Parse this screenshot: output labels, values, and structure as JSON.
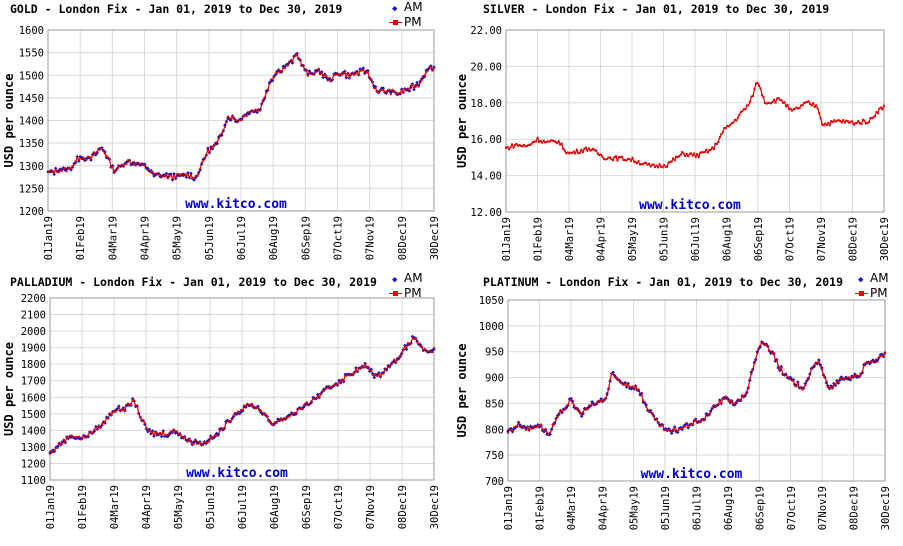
{
  "colors": {
    "am": "#1010c0",
    "pm": "#e00000",
    "grid": "#d8d8d8",
    "watermark": "#0000cc"
  },
  "legend": {
    "am": "AM",
    "pm": "PM"
  },
  "ylabel": "USD per ounce",
  "watermark": "www.kitco.com",
  "x_ticks": [
    "01Jan19",
    "01Feb19",
    "04Mar19",
    "04Apr19",
    "05May19",
    "05Jun19",
    "06Jul19",
    "06Aug19",
    "06Sep19",
    "07Oct19",
    "07Nov19",
    "08Dec19",
    "30Dec19"
  ],
  "chart_data": [
    {
      "type": "line",
      "title": "GOLD - London Fix - Jan 01, 2019 to Dec 30, 2019",
      "ylabel": "USD per ounce",
      "ylim": [
        1200,
        1600
      ],
      "yticks": [
        "1200",
        "1250",
        "1300",
        "1350",
        "1400",
        "1450",
        "1500",
        "1550",
        "1600"
      ],
      "legend": [
        "AM",
        "PM"
      ],
      "watermark": "www.kitco.com",
      "series_keypoints": [
        [
          0,
          1285
        ],
        [
          10,
          1290
        ],
        [
          20,
          1292
        ],
        [
          30,
          1320
        ],
        [
          40,
          1315
        ],
        [
          50,
          1340
        ],
        [
          55,
          1325
        ],
        [
          62,
          1288
        ],
        [
          75,
          1310
        ],
        [
          90,
          1300
        ],
        [
          100,
          1280
        ],
        [
          115,
          1275
        ],
        [
          130,
          1280
        ],
        [
          140,
          1275
        ],
        [
          150,
          1330
        ],
        [
          160,
          1350
        ],
        [
          170,
          1410
        ],
        [
          180,
          1400
        ],
        [
          190,
          1420
        ],
        [
          200,
          1425
        ],
        [
          210,
          1490
        ],
        [
          215,
          1505
        ],
        [
          225,
          1520
        ],
        [
          235,
          1545
        ],
        [
          245,
          1500
        ],
        [
          255,
          1510
        ],
        [
          265,
          1490
        ],
        [
          275,
          1505
        ],
        [
          285,
          1500
        ],
        [
          300,
          1510
        ],
        [
          310,
          1465
        ],
        [
          320,
          1465
        ],
        [
          330,
          1460
        ],
        [
          340,
          1470
        ],
        [
          350,
          1480
        ],
        [
          358,
          1515
        ],
        [
          364,
          1515
        ]
      ]
    },
    {
      "type": "line",
      "title": "SILVER - London Fix - Jan 01, 2019 to Dec 30, 2019",
      "ylabel": "USD per ounce",
      "ylim": [
        12,
        22
      ],
      "yticks": [
        "12.00",
        "14.00",
        "16.00",
        "18.00",
        "20.00",
        "22.00"
      ],
      "legend": [],
      "watermark": "www.kitco.com",
      "series_keypoints": [
        [
          0,
          15.5
        ],
        [
          10,
          15.7
        ],
        [
          20,
          15.6
        ],
        [
          30,
          16.0
        ],
        [
          40,
          15.8
        ],
        [
          50,
          15.9
        ],
        [
          60,
          15.2
        ],
        [
          80,
          15.5
        ],
        [
          95,
          15.0
        ],
        [
          120,
          14.9
        ],
        [
          140,
          14.5
        ],
        [
          155,
          14.6
        ],
        [
          170,
          15.2
        ],
        [
          185,
          15.1
        ],
        [
          200,
          15.5
        ],
        [
          210,
          16.5
        ],
        [
          220,
          17.0
        ],
        [
          235,
          18.0
        ],
        [
          242,
          19.2
        ],
        [
          250,
          18.0
        ],
        [
          265,
          18.2
        ],
        [
          275,
          17.5
        ],
        [
          290,
          18.0
        ],
        [
          300,
          17.8
        ],
        [
          305,
          16.8
        ],
        [
          320,
          17.0
        ],
        [
          335,
          16.9
        ],
        [
          350,
          17.0
        ],
        [
          357,
          17.5
        ],
        [
          364,
          17.8
        ]
      ]
    },
    {
      "type": "line",
      "title": "PALLADIUM - London Fix - Jan 01, 2019 to Dec 30, 2019",
      "ylabel": "USD per ounce",
      "ylim": [
        1100,
        2200
      ],
      "yticks": [
        "1100",
        "1200",
        "1300",
        "1400",
        "1500",
        "1600",
        "1700",
        "1800",
        "1900",
        "2000",
        "2100",
        "2200"
      ],
      "legend": [
        "AM",
        "PM"
      ],
      "watermark": "www.kitco.com",
      "series_keypoints": [
        [
          0,
          1260
        ],
        [
          10,
          1320
        ],
        [
          20,
          1370
        ],
        [
          30,
          1350
        ],
        [
          40,
          1390
        ],
        [
          50,
          1440
        ],
        [
          60,
          1520
        ],
        [
          70,
          1530
        ],
        [
          80,
          1580
        ],
        [
          88,
          1450
        ],
        [
          95,
          1380
        ],
        [
          110,
          1380
        ],
        [
          120,
          1400
        ],
        [
          130,
          1340
        ],
        [
          145,
          1320
        ],
        [
          160,
          1380
        ],
        [
          175,
          1500
        ],
        [
          190,
          1560
        ],
        [
          200,
          1520
        ],
        [
          210,
          1440
        ],
        [
          225,
          1480
        ],
        [
          240,
          1540
        ],
        [
          255,
          1610
        ],
        [
          270,
          1680
        ],
        [
          290,
          1760
        ],
        [
          300,
          1790
        ],
        [
          310,
          1720
        ],
        [
          320,
          1780
        ],
        [
          330,
          1840
        ],
        [
          345,
          1960
        ],
        [
          358,
          1860
        ],
        [
          364,
          1890
        ]
      ]
    },
    {
      "type": "line",
      "title": "PLATINUM - London Fix - Jan 01, 2019 to Dec 30, 2019",
      "ylabel": "USD per ounce",
      "ylim": [
        700,
        1050
      ],
      "yticks": [
        "700",
        "750",
        "800",
        "850",
        "900",
        "950",
        "1000",
        "1050"
      ],
      "legend": [
        "AM",
        "PM"
      ],
      "watermark": "www.kitco.com",
      "series_keypoints": [
        [
          0,
          795
        ],
        [
          10,
          810
        ],
        [
          20,
          800
        ],
        [
          30,
          810
        ],
        [
          40,
          790
        ],
        [
          50,
          830
        ],
        [
          60,
          855
        ],
        [
          70,
          830
        ],
        [
          80,
          845
        ],
        [
          95,
          860
        ],
        [
          100,
          905
        ],
        [
          110,
          890
        ],
        [
          125,
          880
        ],
        [
          135,
          840
        ],
        [
          145,
          810
        ],
        [
          155,
          795
        ],
        [
          165,
          800
        ],
        [
          175,
          810
        ],
        [
          190,
          820
        ],
        [
          200,
          845
        ],
        [
          210,
          860
        ],
        [
          220,
          850
        ],
        [
          230,
          870
        ],
        [
          240,
          940
        ],
        [
          245,
          970
        ],
        [
          255,
          950
        ],
        [
          265,
          910
        ],
        [
          275,
          890
        ],
        [
          285,
          880
        ],
        [
          295,
          920
        ],
        [
          300,
          935
        ],
        [
          310,
          875
        ],
        [
          320,
          895
        ],
        [
          330,
          900
        ],
        [
          340,
          905
        ],
        [
          345,
          925
        ],
        [
          352,
          930
        ],
        [
          358,
          935
        ],
        [
          364,
          945
        ]
      ]
    }
  ]
}
